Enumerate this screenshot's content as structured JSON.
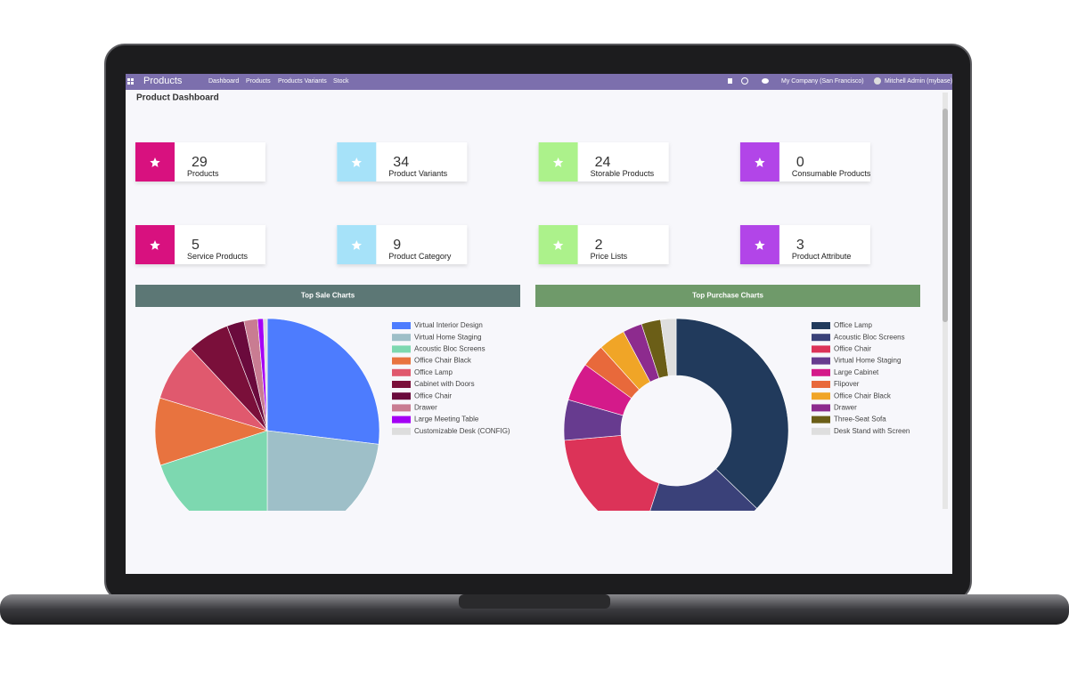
{
  "navbar": {
    "app": "Products",
    "menu": [
      "Dashboard",
      "Products",
      "Products Variants",
      "Stock"
    ],
    "company": "My Company (San Francisco)",
    "user": "Mitchell Admin (mybase)"
  },
  "page_title": "Product Dashboard",
  "cards": [
    {
      "value": 29,
      "label": "Products",
      "color": "#d8117f"
    },
    {
      "value": 34,
      "label": "Product Variants",
      "color": "#a6e2f9"
    },
    {
      "value": 24,
      "label": "Storable Products",
      "color": "#acf28b"
    },
    {
      "value": 0,
      "label": "Consumable Products",
      "color": "#b245e8"
    },
    {
      "value": 5,
      "label": "Service Products",
      "color": "#d8117f"
    },
    {
      "value": 9,
      "label": "Product Category",
      "color": "#a6e2f9"
    },
    {
      "value": 2,
      "label": "Price Lists",
      "color": "#acf28b"
    },
    {
      "value": 3,
      "label": "Product Attribute",
      "color": "#b245e8"
    }
  ],
  "charts": [
    {
      "type": "pie",
      "title": "Top Sale Charts",
      "header_color": "#5c7775",
      "categories": [
        "Virtual Interior Design",
        "Virtual Home Staging",
        "Acoustic Bloc Screens",
        "Office Chair Black",
        "Office Lamp",
        "Cabinet with Doors",
        "Office Chair",
        "Drawer",
        "Large Meeting Table",
        "Customizable Desk (CONFIG)"
      ],
      "values": [
        97,
        83,
        72,
        35,
        30,
        22,
        9,
        7,
        3,
        2
      ],
      "colors": [
        "#4d7cfe",
        "#9ebfc8",
        "#7dd8b0",
        "#e8733f",
        "#e0596e",
        "#7a0f3a",
        "#6a0a3c",
        "#c97c92",
        "#a400f5",
        "#dddddd"
      ]
    },
    {
      "type": "doughnut",
      "title": "Top Purchase Charts",
      "header_color": "#6f9a6a",
      "categories": [
        "Office Lamp",
        "Acoustic Bloc Screens",
        "Office Chair",
        "Virtual Home Staging",
        "Large Cabinet",
        "Flipover",
        "Office Chair Black",
        "Drawer",
        "Three-Seat Sofa",
        "Desk Stand with Screen"
      ],
      "values": [
        134,
        64,
        67,
        21,
        20,
        12,
        14,
        10,
        10,
        8
      ],
      "colors": [
        "#213a5c",
        "#3a4179",
        "#dc3358",
        "#673b8f",
        "#d41a8a",
        "#e8693b",
        "#f0a527",
        "#8d2b8e",
        "#6b5e17",
        "#dedede"
      ]
    }
  ]
}
